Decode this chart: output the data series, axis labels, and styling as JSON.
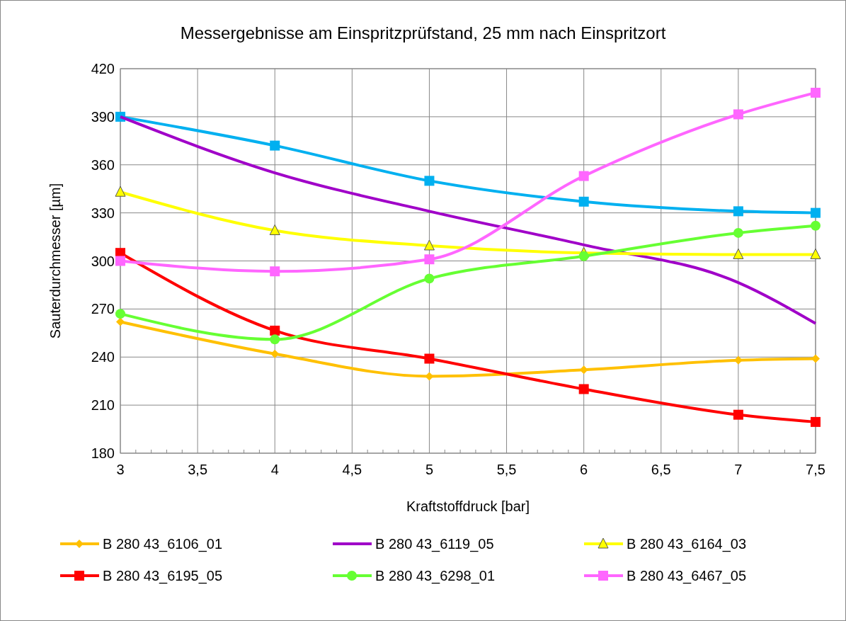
{
  "chart_data": {
    "type": "line",
    "title": "Messergebnisse am Einspritzprüfstand, 25 mm nach Einspritzort",
    "xlabel": "Kraftstoffdruck [bar]",
    "ylabel": "Sauterdurchmesser [µm]",
    "xlim": [
      3,
      7.5
    ],
    "ylim": [
      180,
      420
    ],
    "xticks": [
      3,
      {
        "value": 3.5,
        "label": "3,5"
      },
      4,
      {
        "value": 4.5,
        "label": "4,5"
      },
      5,
      {
        "value": 5.5,
        "label": "5,5"
      },
      6,
      {
        "value": 6.5,
        "label": "6,5"
      },
      7,
      {
        "value": 7.5,
        "label": "7,5"
      }
    ],
    "yticks": [
      180,
      210,
      240,
      270,
      300,
      330,
      360,
      390,
      420
    ],
    "grid": true,
    "legend": "bottom",
    "x": [
      3,
      4,
      5,
      6,
      7,
      7.5
    ],
    "series": [
      {
        "color": "#00b0f0",
        "marker": "square",
        "values": [
          390,
          372,
          350,
          337,
          331,
          330
        ]
      },
      {
        "name": "B 280 43_6106_01",
        "color": "#ffc000",
        "marker": "diamond",
        "values": [
          262,
          242,
          228,
          232,
          238,
          239
        ]
      },
      {
        "name": "B 280 43_6119_05",
        "color": "#a000c8",
        "marker": "none",
        "values": [
          390,
          355,
          331,
          310,
          286.5,
          261
        ]
      },
      {
        "name": "B 280 43_6164_03",
        "color": "#ffff00",
        "marker": "triangle",
        "values": [
          343,
          319,
          309.5,
          305,
          304,
          304
        ]
      },
      {
        "name": "B 280 43_6195_05",
        "color": "#ff0000",
        "marker": "square",
        "values": [
          305,
          256.5,
          239,
          220,
          204,
          199.5
        ]
      },
      {
        "name": "B 280 43_6298_01",
        "color": "#66ff33",
        "marker": "circle",
        "values": [
          267,
          251,
          289,
          303,
          317.5,
          322
        ]
      },
      {
        "name": "B 280 43_6467_05",
        "color": "#ff66ff",
        "marker": "square",
        "values": [
          300,
          293.5,
          301,
          353,
          391.5,
          405
        ]
      }
    ]
  }
}
